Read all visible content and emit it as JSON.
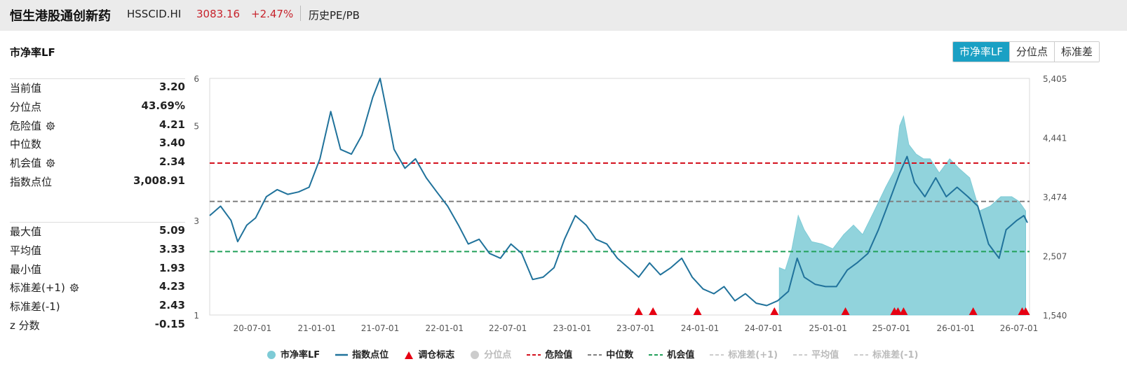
{
  "header": {
    "name": "恒生港股通创新药",
    "code": "HSSCID.HI",
    "price": "3083.16",
    "change": "+2.47%",
    "history_label": "历史PE/PB",
    "up_color": "#c7232c"
  },
  "metric_title": "市净率LF",
  "segments": [
    {
      "label": "市净率LF",
      "active": true
    },
    {
      "label": "分位点",
      "active": false
    },
    {
      "label": "标准差",
      "active": false
    }
  ],
  "stats_top": [
    {
      "label": "当前值",
      "value": "3.20",
      "gear": false
    },
    {
      "label": "分位点",
      "value": "43.69%",
      "gear": false
    },
    {
      "label": "危险值",
      "value": "4.21",
      "gear": true
    },
    {
      "label": "中位数",
      "value": "3.40",
      "gear": false
    },
    {
      "label": "机会值",
      "value": "2.34",
      "gear": true
    },
    {
      "label": "指数点位",
      "value": "3,008.91",
      "gear": false
    }
  ],
  "stats_bottom": [
    {
      "label": "最大值",
      "value": "5.09",
      "gear": false
    },
    {
      "label": "平均值",
      "value": "3.33",
      "gear": false
    },
    {
      "label": "最小值",
      "value": "1.93",
      "gear": false
    },
    {
      "label": "标准差(+1)",
      "value": "4.23",
      "gear": true
    },
    {
      "label": "标准差(-1)",
      "value": "2.43",
      "gear": false
    },
    {
      "label": "z 分数",
      "value": "-0.15",
      "gear": false
    }
  ],
  "chart_data": {
    "type": "line",
    "x_ticks": [
      "20-07-01",
      "21-01-01",
      "21-07-01",
      "22-01-01",
      "22-07-01",
      "23-01-01",
      "23-07-01",
      "24-01-01",
      "24-07-01",
      "25-01-01",
      "25-07-01",
      "26-01-01",
      "26-07-01"
    ],
    "y_left_ticks": [
      "6",
      "5",
      "3",
      "1"
    ],
    "y_right_ticks": [
      "5,405",
      "4,441",
      "3,474",
      "2,507",
      "1,540"
    ],
    "y_left_range": [
      1,
      6
    ],
    "y_right_range": [
      1540,
      5405
    ],
    "series": [
      {
        "name": "市净率LF",
        "type": "area",
        "color": "#7ecbd6",
        "start": "24-08-15",
        "points": [
          [
            "24-08-15",
            2.0
          ],
          [
            "24-09-01",
            1.95
          ],
          [
            "24-09-20",
            2.4
          ],
          [
            "24-10-08",
            3.1
          ],
          [
            "24-10-25",
            2.8
          ],
          [
            "24-11-15",
            2.55
          ],
          [
            "24-12-15",
            2.5
          ],
          [
            "25-01-15",
            2.4
          ],
          [
            "25-02-15",
            2.7
          ],
          [
            "25-03-15",
            2.9
          ],
          [
            "25-04-10",
            2.7
          ],
          [
            "25-05-10",
            3.15
          ],
          [
            "25-06-15",
            3.7
          ],
          [
            "25-07-10",
            4.05
          ],
          [
            "25-07-25",
            5.0
          ],
          [
            "25-08-05",
            5.2
          ],
          [
            "25-08-20",
            4.6
          ],
          [
            "25-09-10",
            4.4
          ],
          [
            "25-10-01",
            4.3
          ],
          [
            "25-10-20",
            4.3
          ],
          [
            "25-11-15",
            4.0
          ],
          [
            "25-12-15",
            4.3
          ],
          [
            "26-01-10",
            4.1
          ],
          [
            "26-02-10",
            3.9
          ],
          [
            "26-03-10",
            3.2
          ],
          [
            "26-04-10",
            3.3
          ],
          [
            "26-05-10",
            3.5
          ],
          [
            "26-06-10",
            3.5
          ],
          [
            "26-07-01",
            3.4
          ],
          [
            "26-07-20",
            3.2
          ]
        ]
      },
      {
        "name": "指数点位",
        "type": "line",
        "color": "#20729b",
        "points": [
          [
            "20-03-01",
            3.1
          ],
          [
            "20-04-01",
            3.3
          ],
          [
            "20-05-01",
            3.0
          ],
          [
            "20-05-20",
            2.55
          ],
          [
            "20-06-15",
            2.9
          ],
          [
            "20-07-10",
            3.05
          ],
          [
            "20-08-10",
            3.5
          ],
          [
            "20-09-10",
            3.65
          ],
          [
            "20-10-10",
            3.55
          ],
          [
            "20-11-10",
            3.6
          ],
          [
            "20-12-10",
            3.7
          ],
          [
            "21-01-10",
            4.3
          ],
          [
            "21-02-10",
            5.3
          ],
          [
            "21-03-10",
            4.5
          ],
          [
            "21-04-10",
            4.4
          ],
          [
            "21-05-10",
            4.8
          ],
          [
            "21-06-10",
            5.6
          ],
          [
            "21-07-01",
            6.0
          ],
          [
            "21-07-20",
            5.3
          ],
          [
            "21-08-10",
            4.5
          ],
          [
            "21-09-10",
            4.1
          ],
          [
            "21-10-10",
            4.3
          ],
          [
            "21-11-10",
            3.9
          ],
          [
            "21-12-10",
            3.6
          ],
          [
            "22-01-10",
            3.3
          ],
          [
            "22-02-10",
            2.9
          ],
          [
            "22-03-10",
            2.5
          ],
          [
            "22-04-10",
            2.6
          ],
          [
            "22-05-10",
            2.3
          ],
          [
            "22-06-10",
            2.2
          ],
          [
            "22-07-10",
            2.5
          ],
          [
            "22-08-10",
            2.3
          ],
          [
            "22-09-10",
            1.75
          ],
          [
            "22-10-10",
            1.8
          ],
          [
            "22-11-10",
            2.0
          ],
          [
            "22-12-10",
            2.6
          ],
          [
            "23-01-10",
            3.1
          ],
          [
            "23-02-10",
            2.9
          ],
          [
            "23-03-10",
            2.6
          ],
          [
            "23-04-10",
            2.5
          ],
          [
            "23-05-10",
            2.2
          ],
          [
            "23-06-10",
            2.0
          ],
          [
            "23-07-10",
            1.8
          ],
          [
            "23-08-10",
            2.1
          ],
          [
            "23-09-10",
            1.85
          ],
          [
            "23-10-10",
            2.0
          ],
          [
            "23-11-10",
            2.2
          ],
          [
            "23-12-10",
            1.8
          ],
          [
            "24-01-10",
            1.55
          ],
          [
            "24-02-10",
            1.45
          ],
          [
            "24-03-10",
            1.6
          ],
          [
            "24-04-10",
            1.3
          ],
          [
            "24-05-10",
            1.45
          ],
          [
            "24-06-10",
            1.25
          ],
          [
            "24-07-10",
            1.2
          ],
          [
            "24-08-10",
            1.3
          ],
          [
            "24-09-10",
            1.5
          ],
          [
            "24-10-05",
            2.2
          ],
          [
            "24-10-25",
            1.8
          ],
          [
            "24-11-25",
            1.65
          ],
          [
            "24-12-25",
            1.6
          ],
          [
            "25-01-25",
            1.6
          ],
          [
            "25-02-25",
            1.95
          ],
          [
            "25-03-25",
            2.1
          ],
          [
            "25-04-25",
            2.3
          ],
          [
            "25-05-25",
            2.8
          ],
          [
            "25-06-25",
            3.4
          ],
          [
            "25-07-25",
            4.0
          ],
          [
            "25-08-15",
            4.35
          ],
          [
            "25-09-05",
            3.8
          ],
          [
            "25-10-05",
            3.5
          ],
          [
            "25-11-05",
            3.9
          ],
          [
            "25-12-05",
            3.5
          ],
          [
            "26-01-05",
            3.7
          ],
          [
            "26-02-05",
            3.5
          ],
          [
            "26-03-05",
            3.3
          ],
          [
            "26-04-05",
            2.5
          ],
          [
            "26-05-05",
            2.2
          ],
          [
            "26-05-25",
            2.8
          ],
          [
            "26-06-25",
            3.0
          ],
          [
            "26-07-15",
            3.1
          ],
          [
            "26-07-25",
            2.95
          ]
        ]
      }
    ],
    "reference_lines": [
      {
        "name": "危险值",
        "value": 4.21,
        "color": "#d4121f"
      },
      {
        "name": "中位数",
        "value": 3.4,
        "color": "#808080"
      },
      {
        "name": "机会值",
        "value": 2.34,
        "color": "#22a05a"
      }
    ],
    "rebalance_markers": [
      "23-07-10",
      "23-08-20",
      "23-12-25",
      "24-08-01",
      "25-02-20",
      "25-07-10",
      "25-07-20",
      "25-08-05",
      "26-02-20",
      "26-07-10",
      "26-07-20"
    ]
  },
  "legend": [
    {
      "label": "市净率LF",
      "kind": "dot",
      "color": "#7ecbd6",
      "muted": false
    },
    {
      "label": "指数点位",
      "kind": "line",
      "color": "#20729b",
      "muted": false
    },
    {
      "label": "调仓标志",
      "kind": "triangle",
      "color": "#e60012",
      "muted": false
    },
    {
      "label": "分位点",
      "kind": "dot",
      "color": "#cccccc",
      "muted": true
    },
    {
      "label": "危险值",
      "kind": "dash",
      "color": "#d4121f",
      "muted": false
    },
    {
      "label": "中位数",
      "kind": "dash",
      "color": "#808080",
      "muted": false
    },
    {
      "label": "机会值",
      "kind": "dash",
      "color": "#22a05a",
      "muted": false
    },
    {
      "label": "标准差(+1)",
      "kind": "dash",
      "color": "#cccccc",
      "muted": true
    },
    {
      "label": "平均值",
      "kind": "dash",
      "color": "#cccccc",
      "muted": true
    },
    {
      "label": "标准差(-1)",
      "kind": "dash",
      "color": "#cccccc",
      "muted": true
    }
  ]
}
